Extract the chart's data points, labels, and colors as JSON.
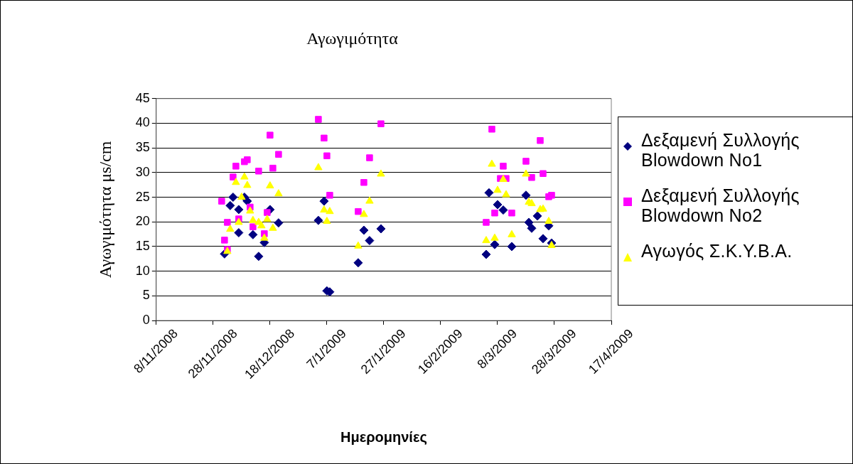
{
  "chart_data": {
    "type": "scatter",
    "title": "Αγωγιμότητα",
    "xlabel": "Ημερομηνίες",
    "ylabel": "Αγωγιμότητα μs/cm",
    "xlim": [
      "2008-11-08",
      "2009-04-17"
    ],
    "xticks": [
      {
        "value": "2008-11-08",
        "label": "8/11/2008"
      },
      {
        "value": "2008-11-28",
        "label": "28/11/2008"
      },
      {
        "value": "2008-12-18",
        "label": "18/12/2008"
      },
      {
        "value": "2009-01-07",
        "label": "7/1/2009"
      },
      {
        "value": "2009-01-27",
        "label": "27/1/2009"
      },
      {
        "value": "2009-02-16",
        "label": "16/2/2009"
      },
      {
        "value": "2009-03-08",
        "label": "8/3/2009"
      },
      {
        "value": "2009-03-28",
        "label": "28/3/2009"
      },
      {
        "value": "2009-04-17",
        "label": "17/4/2009"
      }
    ],
    "ylim": [
      0,
      45
    ],
    "yticks": [
      0,
      5,
      10,
      15,
      20,
      25,
      30,
      35,
      40,
      45
    ],
    "grid": "y",
    "legend": "right",
    "series": [
      {
        "name": "Δεξαμενή Συλλογής Blowdown No1",
        "color": "#000080",
        "marker": "diamond",
        "x": [
          "2008-12-02",
          "2008-12-04",
          "2008-12-05",
          "2008-12-07",
          "2008-12-07",
          "2008-12-09",
          "2008-12-10",
          "2008-12-12",
          "2008-12-14",
          "2008-12-16",
          "2008-12-18",
          "2008-12-21",
          "2009-01-04",
          "2009-01-06",
          "2009-01-07",
          "2009-01-08",
          "2009-01-18",
          "2009-01-20",
          "2009-01-22",
          "2009-01-26",
          "2009-03-04",
          "2009-03-05",
          "2009-03-07",
          "2009-03-08",
          "2009-03-10",
          "2009-03-13",
          "2009-03-18",
          "2009-03-19",
          "2009-03-20",
          "2009-03-22",
          "2009-03-24",
          "2009-03-26",
          "2009-03-27"
        ],
        "values": [
          13.5,
          23.3,
          25,
          17.8,
          22.5,
          25,
          24.2,
          17.4,
          13,
          15.8,
          22.5,
          19.8,
          20.3,
          24.2,
          6,
          5.8,
          11.7,
          18.3,
          16.2,
          18.6,
          13.4,
          25.9,
          15.4,
          23.5,
          22.4,
          15,
          25.4,
          19.9,
          18.7,
          21.2,
          16.6,
          19.2,
          15.7
        ]
      },
      {
        "name": "Δεξαμενή Συλλογής Blowdown No2",
        "color": "#ff00ff",
        "marker": "square",
        "x": [
          "2008-12-01",
          "2008-12-02",
          "2008-12-03",
          "2008-12-03",
          "2008-12-05",
          "2008-12-06",
          "2008-12-07",
          "2008-12-09",
          "2008-12-10",
          "2008-12-11",
          "2008-12-12",
          "2008-12-14",
          "2008-12-16",
          "2008-12-17",
          "2008-12-18",
          "2008-12-19",
          "2008-12-21",
          "2009-01-04",
          "2009-01-06",
          "2009-01-07",
          "2009-01-08",
          "2009-01-18",
          "2009-01-20",
          "2009-01-22",
          "2009-01-26",
          "2009-03-04",
          "2009-03-06",
          "2009-03-07",
          "2009-03-09",
          "2009-03-10",
          "2009-03-11",
          "2009-03-13",
          "2009-03-18",
          "2009-03-20",
          "2009-03-23",
          "2009-03-24",
          "2009-03-26",
          "2009-03-27"
        ],
        "values": [
          24.2,
          16.3,
          14.4,
          19.9,
          29.1,
          31.3,
          20.6,
          32.2,
          32.6,
          23,
          19,
          30.3,
          17.6,
          21.9,
          37.6,
          30.9,
          33.7,
          40.8,
          37,
          33.4,
          25.4,
          22.1,
          28,
          33,
          39.9,
          19.9,
          38.8,
          21.8,
          28.8,
          31.3,
          28.8,
          21.8,
          32.3,
          29,
          36.5,
          29.8,
          25.1,
          25.4
        ]
      },
      {
        "name": "Αγωγός Σ.Κ.Υ.Β.Α.",
        "color": "#ffff00",
        "marker": "triangle",
        "x": [
          "2008-12-03",
          "2008-12-04",
          "2008-12-06",
          "2008-12-07",
          "2008-12-08",
          "2008-12-09",
          "2008-12-10",
          "2008-12-11",
          "2008-12-12",
          "2008-12-14",
          "2008-12-15",
          "2008-12-16",
          "2008-12-17",
          "2008-12-18",
          "2008-12-19",
          "2008-12-21",
          "2009-01-04",
          "2009-01-06",
          "2009-01-07",
          "2009-01-08",
          "2009-01-18",
          "2009-01-20",
          "2009-01-22",
          "2009-01-26",
          "2009-03-04",
          "2009-03-06",
          "2009-03-07",
          "2009-03-08",
          "2009-03-10",
          "2009-03-11",
          "2009-03-13",
          "2009-03-18",
          "2009-03-19",
          "2009-03-20",
          "2009-03-23",
          "2009-03-24",
          "2009-03-26",
          "2009-03-27"
        ],
        "values": [
          14,
          18.5,
          28,
          19.9,
          25,
          29.1,
          27.4,
          22.2,
          20.3,
          19.9,
          19.2,
          16.7,
          20.5,
          27.3,
          18.7,
          25.7,
          31,
          22.4,
          20.1,
          22.1,
          15.1,
          21.5,
          24.2,
          29.7,
          16.2,
          31.7,
          16.7,
          26.4,
          28.6,
          25.5,
          17.4,
          29.7,
          24,
          23.7,
          22.5,
          22.6,
          20.1,
          15.2
        ]
      }
    ]
  }
}
